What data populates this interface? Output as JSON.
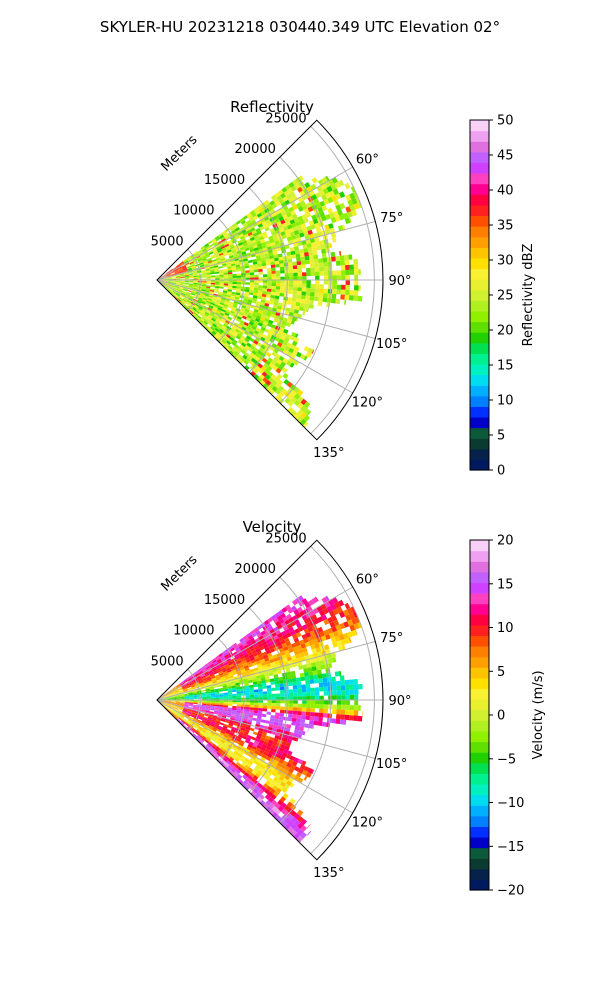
{
  "figure_title": "SKYLER-HU  20231218  030440.349 UTC Elevation 02°",
  "colors": {
    "grid": "#b0b0b0",
    "outline": "#000000",
    "reflectivity_scale": [
      "#001a60",
      "#06224a",
      "#0a3a30",
      "#0c5a3a",
      "#0000c8",
      "#0030ff",
      "#0080ff",
      "#00b0ff",
      "#00dcf0",
      "#00f0c0",
      "#00f090",
      "#00e050",
      "#20d000",
      "#60e000",
      "#90f000",
      "#b0f020",
      "#d0f030",
      "#e8f030",
      "#f8f030",
      "#ffe000",
      "#ffc400",
      "#ffa000",
      "#ff8000",
      "#ff5000",
      "#ff2020",
      "#ff0040",
      "#ff0090",
      "#ff40c0",
      "#d040ff",
      "#c060ff",
      "#e070e0",
      "#f0a0f0",
      "#f8d0f8"
    ],
    "velocity_scale": [
      "#001a60",
      "#06224a",
      "#0a3a30",
      "#0c5a3a",
      "#0000c8",
      "#0030ff",
      "#0080ff",
      "#00b0ff",
      "#00dcf0",
      "#00f0c0",
      "#00f090",
      "#00e050",
      "#20d000",
      "#60e000",
      "#90f000",
      "#b0f020",
      "#d0f030",
      "#e8f030",
      "#f8f030",
      "#ffe000",
      "#ffc400",
      "#ffa000",
      "#ff8000",
      "#ff5000",
      "#ff2020",
      "#ff0040",
      "#ff0090",
      "#ff40c0",
      "#d040ff",
      "#c060ff",
      "#e070e0",
      "#f0a0f0",
      "#f8d0f8"
    ]
  },
  "chart_data": [
    {
      "type": "heatmap",
      "projection": "polar-sector",
      "title": "Reflectivity",
      "range_label": "Meters",
      "range_ticks": [
        5000,
        10000,
        15000,
        20000,
        25000
      ],
      "range_tick_labels": [
        "5000",
        "10000",
        "15000",
        "20000",
        "25000"
      ],
      "max_range": 26000,
      "azimuth_range": [
        45,
        135
      ],
      "azimuth_ticks": [
        60,
        75,
        90,
        105,
        120,
        135
      ],
      "azimuth_tick_labels": [
        "60°",
        "75°",
        "90°",
        "105°",
        "120°",
        "135°"
      ],
      "grid": true,
      "colorbar": {
        "label": "Reflectivity dBZ",
        "vmin": 0,
        "vmax": 50,
        "ticks": [
          0,
          5,
          10,
          15,
          20,
          25,
          30,
          35,
          40,
          45,
          50
        ],
        "tick_labels": [
          "0",
          "5",
          "10",
          "15",
          "20",
          "25",
          "30",
          "35",
          "40",
          "45",
          "50"
        ]
      },
      "echo_outer_range_by_azimuth": [
        {
          "az": 56,
          "range": 20500
        },
        {
          "az": 60,
          "range": 23500
        },
        {
          "az": 65,
          "range": 25000
        },
        {
          "az": 70,
          "range": 25000
        },
        {
          "az": 75,
          "range": 22000
        },
        {
          "az": 80,
          "range": 20000
        },
        {
          "az": 85,
          "range": 24000
        },
        {
          "az": 90,
          "range": 23000
        },
        {
          "az": 95,
          "range": 24000
        },
        {
          "az": 100,
          "range": 18000
        },
        {
          "az": 105,
          "range": 17000
        },
        {
          "az": 110,
          "range": 16000
        },
        {
          "az": 115,
          "range": 20000
        },
        {
          "az": 120,
          "range": 19000
        },
        {
          "az": 125,
          "range": 18000
        },
        {
          "az": 130,
          "range": 23000
        },
        {
          "az": 134,
          "range": 24000
        }
      ],
      "typical_value": 24,
      "peak_value": 38
    },
    {
      "type": "heatmap",
      "projection": "polar-sector",
      "title": "Velocity",
      "range_label": "Meters",
      "range_ticks": [
        5000,
        10000,
        15000,
        20000,
        25000
      ],
      "range_tick_labels": [
        "5000",
        "10000",
        "15000",
        "20000",
        "25000"
      ],
      "max_range": 26000,
      "azimuth_range": [
        45,
        135
      ],
      "azimuth_ticks": [
        60,
        75,
        90,
        105,
        120,
        135
      ],
      "azimuth_tick_labels": [
        "60°",
        "75°",
        "90°",
        "105°",
        "120°",
        "135°"
      ],
      "grid": true,
      "colorbar": {
        "label": "Velocity (m/s)",
        "vmin": -20,
        "vmax": 20,
        "ticks": [
          -20,
          -15,
          -10,
          -5,
          0,
          5,
          10,
          15,
          20
        ],
        "tick_labels": [
          "−20",
          "−15",
          "−10",
          "−5",
          "0",
          "5",
          "10",
          "15",
          "20"
        ]
      },
      "velocity_by_azimuth": [
        {
          "az": 56,
          "value": 14
        },
        {
          "az": 62,
          "value": 11
        },
        {
          "az": 68,
          "value": 8
        },
        {
          "az": 74,
          "value": 3
        },
        {
          "az": 80,
          "value": -4
        },
        {
          "az": 84,
          "value": -10
        },
        {
          "az": 88,
          "value": -8
        },
        {
          "az": 92,
          "value": -2
        },
        {
          "az": 96,
          "value": 14
        },
        {
          "az": 102,
          "value": 15
        },
        {
          "az": 108,
          "value": 9
        },
        {
          "az": 114,
          "value": 12
        },
        {
          "az": 120,
          "value": 4
        },
        {
          "az": 126,
          "value": 2
        },
        {
          "az": 132,
          "value": 16
        }
      ]
    }
  ]
}
